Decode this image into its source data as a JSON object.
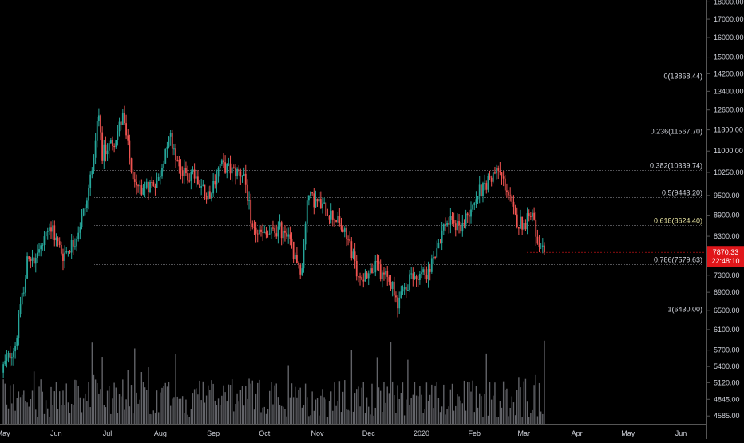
{
  "chart_data": {
    "type": "candlestick",
    "title": "",
    "xlabel": "",
    "ylabel": "",
    "y_scale": "log",
    "ylim": [
      4480,
      18500
    ],
    "y_ticks": [
      "18000.00",
      "17000.00",
      "16000.00",
      "15000.00",
      "14200.00",
      "13400.00",
      "12600.00",
      "11800.00",
      "11000.00",
      "10250.00",
      "9500.00",
      "8900.00",
      "8300.00",
      "7800.00",
      "7300.00",
      "6900.00",
      "6500.00",
      "6100.00",
      "5700.00",
      "5400.00",
      "5120.00",
      "4845.00",
      "4585.00"
    ],
    "x_ticks": [
      "May",
      "Jun",
      "Jul",
      "Aug",
      "Sep",
      "Oct",
      "Nov",
      "Dec",
      "2020",
      "Feb",
      "Mar",
      "Apr",
      "May",
      "Jun"
    ],
    "colors": {
      "up": "#26a69a",
      "down": "#ef5350",
      "fib_line": "#d1d4dc",
      "fib_highlight_text": "#e8e3a0",
      "price_label_bg": "#e0161a",
      "axis_text": "#d1d4dc",
      "axis_line": "#787b86",
      "background": "#000000"
    },
    "fib_levels": [
      {
        "label": "0(13868.44)",
        "value": 13868.44
      },
      {
        "label": "0.236(11567.70)",
        "value": 11567.7
      },
      {
        "label": "0.382(10339.74)",
        "value": 10339.74
      },
      {
        "label": "0.5(9443.20)",
        "value": 9443.2
      },
      {
        "label": "0.618(8624.40)",
        "value": 8624.4
      },
      {
        "label": "0.786(7579.63)",
        "value": 7579.63
      },
      {
        "label": "1(6430.00)",
        "value": 6430.0
      }
    ],
    "fib_start_month": "Jun",
    "last_price": {
      "price": "7870.33",
      "countdown": "22:48:10",
      "value": 7870.33
    },
    "path": [
      [
        "2019-05-01",
        5400
      ],
      [
        "2019-05-08",
        5800
      ],
      [
        "2019-05-15",
        7600
      ],
      [
        "2019-05-22",
        7900
      ],
      [
        "2019-05-29",
        8500
      ],
      [
        "2019-06-05",
        7800
      ],
      [
        "2019-06-12",
        8200
      ],
      [
        "2019-06-19",
        9300
      ],
      [
        "2019-06-26",
        12500
      ],
      [
        "2019-06-28",
        10900
      ],
      [
        "2019-07-05",
        11400
      ],
      [
        "2019-07-10",
        12300
      ],
      [
        "2019-07-17",
        9700
      ],
      [
        "2019-07-24",
        9800
      ],
      [
        "2019-07-31",
        10000
      ],
      [
        "2019-08-06",
        11700
      ],
      [
        "2019-08-14",
        10200
      ],
      [
        "2019-08-21",
        10100
      ],
      [
        "2019-08-29",
        9500
      ],
      [
        "2019-09-05",
        10500
      ],
      [
        "2019-09-12",
        10300
      ],
      [
        "2019-09-19",
        10200
      ],
      [
        "2019-09-24",
        8500
      ],
      [
        "2019-10-01",
        8300
      ],
      [
        "2019-10-10",
        8500
      ],
      [
        "2019-10-16",
        8100
      ],
      [
        "2019-10-23",
        7400
      ],
      [
        "2019-10-26",
        9500
      ],
      [
        "2019-11-03",
        9200
      ],
      [
        "2019-11-12",
        8800
      ],
      [
        "2019-11-20",
        8100
      ],
      [
        "2019-11-25",
        7200
      ],
      [
        "2019-12-05",
        7500
      ],
      [
        "2019-12-15",
        7100
      ],
      [
        "2019-12-18",
        6700
      ],
      [
        "2019-12-25",
        7200
      ],
      [
        "2020-01-05",
        7400
      ],
      [
        "2020-01-15",
        8700
      ],
      [
        "2020-01-25",
        8600
      ],
      [
        "2020-02-01",
        9400
      ],
      [
        "2020-02-09",
        10000
      ],
      [
        "2020-02-15",
        10300
      ],
      [
        "2020-02-20",
        9700
      ],
      [
        "2020-02-25",
        8800
      ],
      [
        "2020-03-01",
        8600
      ],
      [
        "2020-03-06",
        9100
      ],
      [
        "2020-03-10",
        7900
      ],
      [
        "2020-03-13",
        7870
      ]
    ]
  }
}
